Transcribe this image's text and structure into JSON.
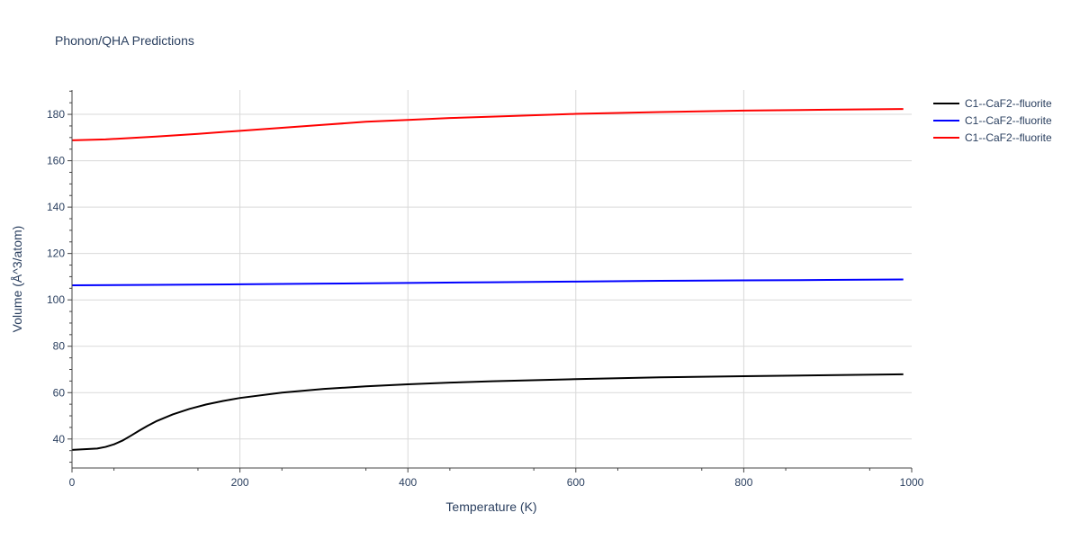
{
  "chart_data": {
    "type": "line",
    "title": "Phonon/QHA Predictions",
    "xlabel": "Temperature (K)",
    "ylabel": "Volume (Å^3/atom)",
    "xlim": [
      0,
      1000
    ],
    "ylim": [
      27.5,
      190.5
    ],
    "xticks": [
      0,
      200,
      400,
      600,
      800,
      1000
    ],
    "yticks": [
      40,
      60,
      80,
      100,
      120,
      140,
      160,
      180
    ],
    "grid": true,
    "legend_position": "top-right",
    "series": [
      {
        "name": "C1--CaF2--fluorite",
        "color": "#000000",
        "x": [
          0,
          10,
          20,
          30,
          40,
          50,
          60,
          70,
          80,
          90,
          100,
          120,
          140,
          160,
          180,
          200,
          250,
          300,
          350,
          400,
          450,
          500,
          600,
          700,
          800,
          900,
          990
        ],
        "y": [
          35.3,
          35.5,
          35.7,
          35.9,
          36.6,
          37.7,
          39.3,
          41.4,
          43.6,
          45.7,
          47.6,
          50.6,
          53.0,
          54.9,
          56.4,
          57.7,
          60.0,
          61.6,
          62.7,
          63.6,
          64.3,
          64.9,
          65.8,
          66.6,
          67.1,
          67.5,
          67.9
        ]
      },
      {
        "name": "C1--CaF2--fluorite",
        "color": "#0000ff",
        "x": [
          0,
          100,
          200,
          300,
          400,
          500,
          600,
          700,
          800,
          900,
          990
        ],
        "y": [
          106.3,
          106.5,
          106.7,
          107.0,
          107.3,
          107.6,
          107.9,
          108.2,
          108.4,
          108.6,
          108.8
        ]
      },
      {
        "name": "C1--CaF2--fluorite",
        "color": "#ff0000",
        "x": [
          0,
          20,
          40,
          60,
          100,
          150,
          200,
          250,
          300,
          350,
          400,
          450,
          500,
          600,
          700,
          800,
          900,
          990
        ],
        "y": [
          168.8,
          169.0,
          169.2,
          169.6,
          170.4,
          171.6,
          172.9,
          174.2,
          175.5,
          176.8,
          177.6,
          178.4,
          179.0,
          180.2,
          181.0,
          181.6,
          182.0,
          182.3
        ]
      }
    ]
  }
}
